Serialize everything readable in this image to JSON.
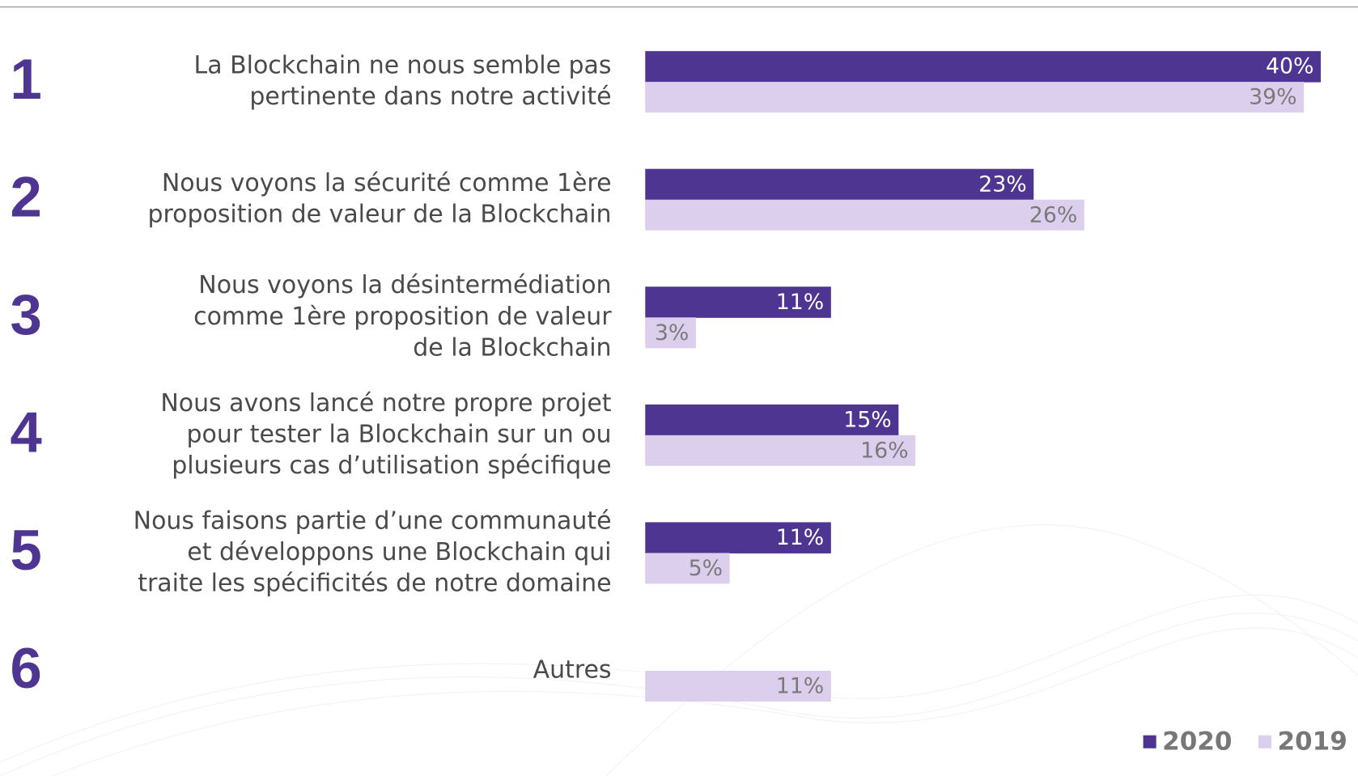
{
  "chart_data": {
    "type": "bar",
    "orientation": "horizontal",
    "ranks": [
      1,
      2,
      3,
      4,
      5,
      6
    ],
    "categories": [
      [
        "La Blockchain ne nous semble pas",
        "pertinente dans notre activité"
      ],
      [
        "Nous voyons la sécurité comme 1ère",
        "proposition de valeur de la Blockchain"
      ],
      [
        "Nous voyons la désintermédiation",
        "comme 1ère proposition de valeur",
        "de la Blockchain"
      ],
      [
        "Nous avons lancé notre propre projet",
        "pour tester la Blockchain sur un ou",
        "plusieurs cas d’utilisation spécifique"
      ],
      [
        "Nous faisons partie d’une communauté",
        "et développons une Blockchain qui",
        "traite les spécificités de notre domaine"
      ],
      [
        "Autres"
      ]
    ],
    "series": [
      {
        "name": "2020",
        "color": "#4e3591",
        "label_color": "#ffffff",
        "values": [
          40,
          23,
          11,
          15,
          11,
          null
        ],
        "value_labels": [
          "40%",
          "23%",
          "11%",
          "15%",
          "11%",
          null
        ]
      },
      {
        "name": "2019",
        "color": "#dccfee",
        "label_color": "#7a7a7a",
        "values": [
          39,
          26,
          3,
          16,
          5,
          11
        ],
        "value_labels": [
          "39%",
          "26%",
          "3%",
          "16%",
          "5%",
          "11%"
        ]
      }
    ],
    "legend": "bottom-right"
  }
}
